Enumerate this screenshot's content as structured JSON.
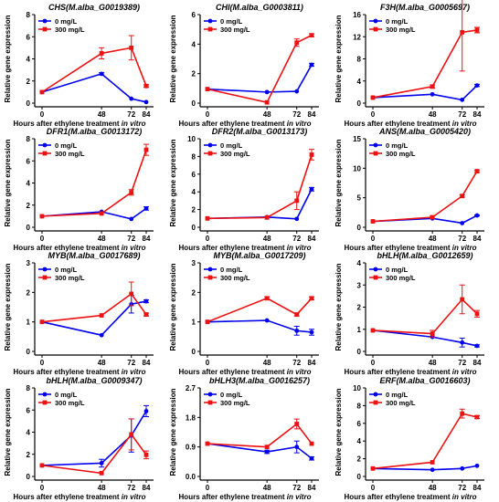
{
  "legend_labels": [
    "0 mg/L",
    "300 mg/L"
  ],
  "x_axis": {
    "label_main": "Hours after ethylene treatment ",
    "label_italic": "in vitro",
    "ticks": [
      "0",
      "48",
      "72",
      "84"
    ]
  },
  "y_axis_label": "Relative gene expression",
  "colors": {
    "control": "#0000ee",
    "treatment": "#ee1111"
  },
  "chart_data": [
    {
      "type": "line",
      "title": "CHS(M.alba_G0019389)",
      "x": [
        0,
        48,
        72,
        84
      ],
      "ylim": [
        0,
        8
      ],
      "yticks": [
        0,
        2,
        4,
        6,
        8
      ],
      "series": [
        {
          "name": "0 mg/L",
          "values": [
            1.0,
            2.65,
            0.4,
            0.1
          ],
          "errors": [
            0,
            0.1,
            0,
            0
          ]
        },
        {
          "name": "300 mg/L",
          "values": [
            1.0,
            4.5,
            5.0,
            1.55
          ],
          "errors": [
            0,
            0.5,
            1.1,
            0.1
          ]
        }
      ]
    },
    {
      "type": "line",
      "title": "CHI(M.alba_G0003811)",
      "x": [
        0,
        48,
        72,
        84
      ],
      "ylim": [
        0,
        6
      ],
      "yticks": [
        0,
        2,
        4,
        6
      ],
      "series": [
        {
          "name": "0 mg/L",
          "values": [
            0.95,
            0.75,
            0.8,
            2.6
          ],
          "errors": [
            0,
            0,
            0,
            0.1
          ]
        },
        {
          "name": "300 mg/L",
          "values": [
            0.95,
            0.05,
            4.1,
            4.6
          ],
          "errors": [
            0,
            0,
            0.25,
            0.1
          ]
        }
      ]
    },
    {
      "type": "line",
      "title": "F3H(M.alba_G0005697)",
      "x": [
        0,
        48,
        72,
        84
      ],
      "ylim": [
        0,
        16
      ],
      "yticks": [
        0,
        4,
        8,
        12,
        16
      ],
      "series": [
        {
          "name": "0 mg/L",
          "values": [
            1.0,
            1.6,
            0.6,
            3.2
          ],
          "errors": [
            0,
            0,
            0,
            0.2
          ]
        },
        {
          "name": "300 mg/L",
          "values": [
            1.0,
            3.0,
            12.8,
            13.2
          ],
          "errors": [
            0,
            0.3,
            7.0,
            0.5
          ]
        }
      ]
    },
    {
      "type": "line",
      "title": "DFR1(M.alba_G0013172)",
      "x": [
        0,
        48,
        72,
        84
      ],
      "ylim": [
        0,
        8
      ],
      "yticks": [
        0,
        2,
        4,
        6,
        8
      ],
      "series": [
        {
          "name": "0 mg/L",
          "values": [
            1.0,
            1.4,
            0.75,
            1.7
          ],
          "errors": [
            0,
            0,
            0,
            0.15
          ]
        },
        {
          "name": "300 mg/L",
          "values": [
            1.0,
            1.25,
            3.15,
            7.0
          ],
          "errors": [
            0,
            0,
            0.25,
            0.5
          ]
        }
      ]
    },
    {
      "type": "line",
      "title": "DFR2(M.alba_G0013173)",
      "x": [
        0,
        48,
        72,
        84
      ],
      "ylim": [
        0,
        10
      ],
      "yticks": [
        0,
        2,
        4,
        6,
        8,
        10
      ],
      "series": [
        {
          "name": "0 mg/L",
          "values": [
            1.0,
            1.15,
            0.95,
            4.3
          ],
          "errors": [
            0,
            0,
            0,
            0.2
          ]
        },
        {
          "name": "300 mg/L",
          "values": [
            1.0,
            1.1,
            3.0,
            8.2
          ],
          "errors": [
            0,
            0,
            1.0,
            0.6
          ]
        }
      ]
    },
    {
      "type": "line",
      "title": "ANS(M.alba_G0005420)",
      "x": [
        0,
        48,
        72,
        84
      ],
      "ylim": [
        0,
        15
      ],
      "yticks": [
        0,
        5,
        10,
        15
      ],
      "series": [
        {
          "name": "0 mg/L",
          "values": [
            1.0,
            1.5,
            0.7,
            2.0
          ],
          "errors": [
            0,
            0,
            0,
            0.1
          ]
        },
        {
          "name": "300 mg/L",
          "values": [
            1.0,
            1.7,
            5.3,
            9.5
          ],
          "errors": [
            0,
            0.2,
            0.2,
            0.2
          ]
        }
      ]
    },
    {
      "type": "line",
      "title": "MYB(M.alba_G0017689)",
      "x": [
        0,
        48,
        72,
        84
      ],
      "ylim": [
        0,
        3
      ],
      "yticks": [
        0,
        1,
        2,
        3
      ],
      "series": [
        {
          "name": "0 mg/L",
          "values": [
            1.0,
            0.55,
            1.6,
            1.7
          ],
          "errors": [
            0,
            0,
            0.3,
            0.05
          ]
        },
        {
          "name": "300 mg/L",
          "values": [
            1.0,
            1.22,
            1.95,
            1.25
          ],
          "errors": [
            0,
            0,
            0.4,
            0.05
          ]
        }
      ]
    },
    {
      "type": "line",
      "title": "MYB(M.alba_G0017209)",
      "x": [
        0,
        48,
        72,
        84
      ],
      "ylim": [
        0,
        3
      ],
      "yticks": [
        0,
        1,
        2,
        3
      ],
      "series": [
        {
          "name": "0 mg/L",
          "values": [
            1.0,
            1.05,
            0.7,
            0.65
          ],
          "errors": [
            0,
            0,
            0.15,
            0.1
          ]
        },
        {
          "name": "300 mg/L",
          "values": [
            1.0,
            1.8,
            1.25,
            1.8
          ],
          "errors": [
            0,
            0.05,
            0.05,
            0.05
          ]
        }
      ]
    },
    {
      "type": "line",
      "title": "bHLH(M.alba_G0012659)",
      "x": [
        0,
        48,
        72,
        84
      ],
      "ylim": [
        0,
        4
      ],
      "yticks": [
        0,
        1,
        2,
        3,
        4
      ],
      "series": [
        {
          "name": "0 mg/L",
          "values": [
            0.95,
            0.65,
            0.4,
            0.25
          ],
          "errors": [
            0,
            0,
            0.2,
            0.05
          ]
        },
        {
          "name": "300 mg/L",
          "values": [
            0.95,
            0.8,
            2.35,
            1.7
          ],
          "errors": [
            0,
            0.15,
            0.65,
            0.15
          ]
        }
      ]
    },
    {
      "type": "line",
      "title": "bHLH(M.alba_G0009347)",
      "x": [
        0,
        48,
        72,
        84
      ],
      "ylim": [
        0,
        8
      ],
      "yticks": [
        0,
        2,
        4,
        6,
        8
      ],
      "series": [
        {
          "name": "0 mg/L",
          "values": [
            1.0,
            1.2,
            3.7,
            5.9
          ],
          "errors": [
            0,
            0.35,
            1.5,
            0.5
          ]
        },
        {
          "name": "300 mg/L",
          "values": [
            1.0,
            0.3,
            3.8,
            1.95
          ],
          "errors": [
            0,
            0,
            1.4,
            0.35
          ]
        }
      ]
    },
    {
      "type": "line",
      "title": "bHLH3(M.alba_G0016257)",
      "x": [
        0,
        48,
        72,
        84
      ],
      "ylim": [
        0,
        2.7
      ],
      "yticks": [
        0,
        0.9,
        1.8,
        2.7
      ],
      "ytick_labels": [
        "0.0",
        "0.9",
        "1.8",
        "2.7"
      ],
      "series": [
        {
          "name": "0 mg/L",
          "values": [
            1.0,
            0.75,
            0.9,
            0.55
          ],
          "errors": [
            0,
            0.05,
            0.18,
            0.05
          ]
        },
        {
          "name": "300 mg/L",
          "values": [
            1.0,
            0.9,
            1.6,
            1.0
          ],
          "errors": [
            0,
            0,
            0.15,
            0
          ]
        }
      ]
    },
    {
      "type": "line",
      "title": "ERF(M.alba_G0016603)",
      "x": [
        0,
        48,
        72,
        84
      ],
      "ylim": [
        0,
        10
      ],
      "yticks": [
        0,
        2,
        4,
        6,
        8,
        10
      ],
      "series": [
        {
          "name": "0 mg/L",
          "values": [
            0.9,
            0.75,
            0.9,
            1.2
          ],
          "errors": [
            0,
            0,
            0,
            0
          ]
        },
        {
          "name": "300 mg/L",
          "values": [
            0.9,
            1.6,
            7.1,
            6.7
          ],
          "errors": [
            0,
            0,
            0.5,
            0.15
          ]
        }
      ]
    }
  ]
}
